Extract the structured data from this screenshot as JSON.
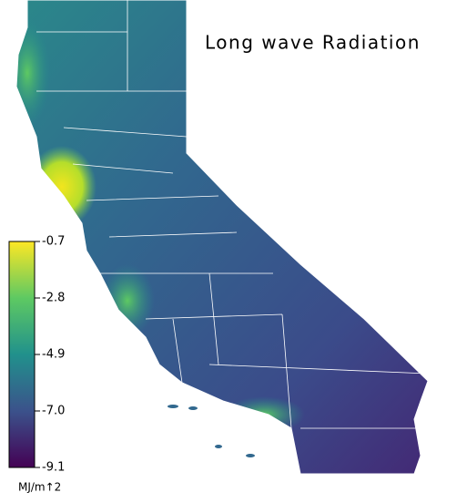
{
  "title": "Long wave Radiation",
  "colorbar": {
    "label": "MJ/m↑2",
    "range": [
      -9.1,
      -0.7
    ],
    "ticks": [
      -0.7,
      -2.8,
      -4.9,
      {
        "value": -7,
        "label": "-7.0"
      },
      -9.1
    ]
  }
}
